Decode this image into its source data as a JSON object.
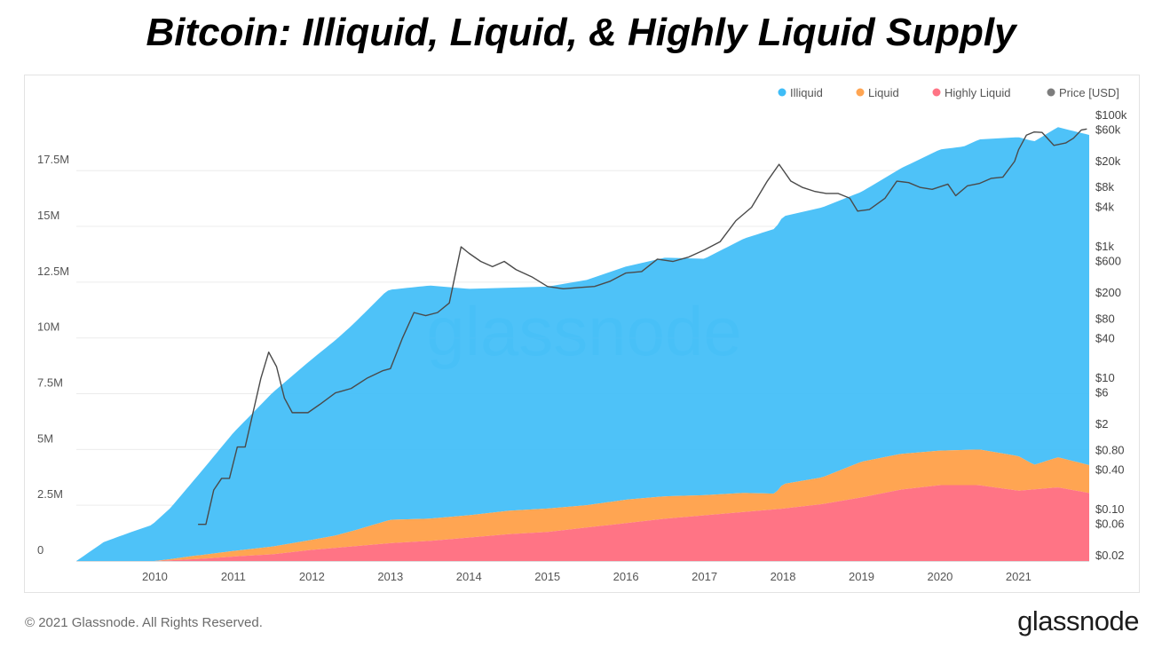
{
  "title": "Bitcoin: Illiquid, Liquid, & Highly Liquid Supply",
  "watermark": "glassnode",
  "footer": {
    "copyright": "© 2021 Glassnode. All Rights Reserved.",
    "logo": "glassnode"
  },
  "colors": {
    "illiquid": "#3FBDF7",
    "liquid": "#FFA552",
    "highly_liquid": "#FF7485",
    "price": "#4a4a4a",
    "legend_price_dot": "#7d7d7d"
  },
  "chart_data": {
    "type": "area",
    "stacked": true,
    "grid": true,
    "legend_position": "top-right",
    "x_ticks": [
      "2010",
      "2011",
      "2012",
      "2013",
      "2014",
      "2015",
      "2016",
      "2017",
      "2018",
      "2019",
      "2020",
      "2021"
    ],
    "x_range": [
      2009.0,
      2021.9
    ],
    "y_left": {
      "ticks": [
        0,
        2.5,
        5,
        7.5,
        10,
        12.5,
        15,
        17.5
      ],
      "tick_labels": [
        "0",
        "2.5M",
        "5M",
        "7.5M",
        "10M",
        "12.5M",
        "15M",
        "17.5M"
      ],
      "range": [
        0,
        19.3
      ],
      "unit": "M BTC"
    },
    "y_right": {
      "scale": "log",
      "tick_values": [
        100000,
        60000,
        20000,
        8000,
        4000,
        1000,
        600,
        200,
        80,
        40,
        10,
        6,
        2,
        0.8,
        0.4,
        0.1,
        0.06,
        0.02
      ],
      "tick_labels": [
        "$100k",
        "$60k",
        "$20k",
        "$8k",
        "$4k",
        "$1k",
        "$600",
        "$200",
        "$80",
        "$40",
        "$10",
        "$6",
        "$2",
        "$0.80",
        "$0.40",
        "$0.10",
        "$0.06",
        "$0.02"
      ]
    },
    "series": [
      {
        "name": "Illiquid",
        "x": [
          2009.0,
          2009.35,
          2009.7,
          2009.95,
          2010.2,
          2010.5,
          2011.0,
          2011.5,
          2012.0,
          2012.5,
          2012.95,
          2013.5,
          2014.0,
          2014.5,
          2015.0,
          2015.5,
          2016.0,
          2016.5,
          2017.0,
          2017.5,
          2018.0,
          2018.5,
          2019.0,
          2019.5,
          2020.0,
          2020.3,
          2020.5,
          2021.0,
          2021.5,
          2021.9
        ],
        "values": [
          0.0,
          0.85,
          1.3,
          1.6,
          2.3,
          3.4,
          5.3,
          6.9,
          8.1,
          9.2,
          10.3,
          10.45,
          10.15,
          10.0,
          9.95,
          10.1,
          10.45,
          10.7,
          10.6,
          11.4,
          12.0,
          12.1,
          12.1,
          12.8,
          13.5,
          13.6,
          13.9,
          14.3,
          14.8,
          14.8
        ]
      },
      {
        "name": "Liquid",
        "x": [
          2009.0,
          2009.5,
          2010.0,
          2010.2,
          2010.5,
          2011.0,
          2011.5,
          2012.0,
          2012.3,
          2012.6,
          2013.0,
          2013.5,
          2014.0,
          2014.5,
          2015.0,
          2015.5,
          2016.0,
          2016.5,
          2017.0,
          2017.5,
          2017.9,
          2018.0,
          2018.5,
          2019.0,
          2019.5,
          2020.0,
          2020.5,
          2021.0,
          2021.2,
          2021.5,
          2021.9
        ],
        "values": [
          0.0,
          0.0,
          0.0,
          0.05,
          0.15,
          0.25,
          0.35,
          0.45,
          0.55,
          0.75,
          1.05,
          1.0,
          1.0,
          1.05,
          1.05,
          1.0,
          1.05,
          1.0,
          0.9,
          0.85,
          0.7,
          1.1,
          1.2,
          1.6,
          1.6,
          1.55,
          1.6,
          1.55,
          1.1,
          1.35,
          1.25
        ]
      },
      {
        "name": "Highly Liquid",
        "x": [
          2009.0,
          2009.5,
          2010.0,
          2010.3,
          2010.6,
          2011.0,
          2011.5,
          2012.0,
          2012.5,
          2013.0,
          2013.5,
          2014.0,
          2014.5,
          2015.0,
          2015.5,
          2016.0,
          2016.5,
          2017.0,
          2017.5,
          2018.0,
          2018.5,
          2019.0,
          2019.5,
          2020.0,
          2020.5,
          2021.0,
          2021.5,
          2021.9
        ],
        "values": [
          0.0,
          0.0,
          0.0,
          0.05,
          0.1,
          0.2,
          0.3,
          0.5,
          0.65,
          0.8,
          0.9,
          1.05,
          1.2,
          1.3,
          1.5,
          1.7,
          1.9,
          2.05,
          2.2,
          2.35,
          2.55,
          2.85,
          3.2,
          3.4,
          3.4,
          3.15,
          3.3,
          3.05
        ]
      },
      {
        "name": "Price [USD]",
        "axis": "right",
        "x": [
          2010.55,
          2010.65,
          2010.75,
          2010.85,
          2010.95,
          2011.05,
          2011.15,
          2011.25,
          2011.35,
          2011.45,
          2011.55,
          2011.65,
          2011.75,
          2011.85,
          2011.95,
          2012.1,
          2012.3,
          2012.5,
          2012.7,
          2012.9,
          2013.0,
          2013.15,
          2013.3,
          2013.45,
          2013.6,
          2013.75,
          2013.9,
          2014.0,
          2014.15,
          2014.3,
          2014.45,
          2014.6,
          2014.8,
          2015.0,
          2015.2,
          2015.4,
          2015.6,
          2015.8,
          2016.0,
          2016.2,
          2016.4,
          2016.6,
          2016.8,
          2017.0,
          2017.2,
          2017.4,
          2017.6,
          2017.8,
          2017.95,
          2018.1,
          2018.25,
          2018.4,
          2018.55,
          2018.7,
          2018.85,
          2018.95,
          2019.1,
          2019.3,
          2019.45,
          2019.6,
          2019.75,
          2019.9,
          2020.1,
          2020.2,
          2020.35,
          2020.5,
          2020.65,
          2020.8,
          2020.95,
          2021.0,
          2021.1,
          2021.2,
          2021.3,
          2021.45,
          2021.6,
          2021.7,
          2021.8,
          2021.87
        ],
        "values": [
          0.06,
          0.06,
          0.2,
          0.3,
          0.3,
          0.9,
          0.9,
          3,
          10,
          25,
          15,
          5,
          3,
          3,
          3,
          4,
          6,
          7,
          10,
          13,
          14,
          40,
          100,
          90,
          100,
          140,
          1000,
          800,
          600,
          500,
          600,
          450,
          350,
          250,
          230,
          240,
          250,
          300,
          400,
          420,
          650,
          600,
          700,
          900,
          1200,
          2500,
          4000,
          10000,
          18000,
          10000,
          8000,
          7000,
          6500,
          6500,
          5500,
          3500,
          3700,
          5500,
          10000,
          9500,
          8000,
          7500,
          9000,
          6000,
          8500,
          9200,
          11000,
          11500,
          20000,
          30000,
          50000,
          56000,
          55000,
          35000,
          38000,
          45000,
          60000,
          62000
        ]
      }
    ]
  }
}
